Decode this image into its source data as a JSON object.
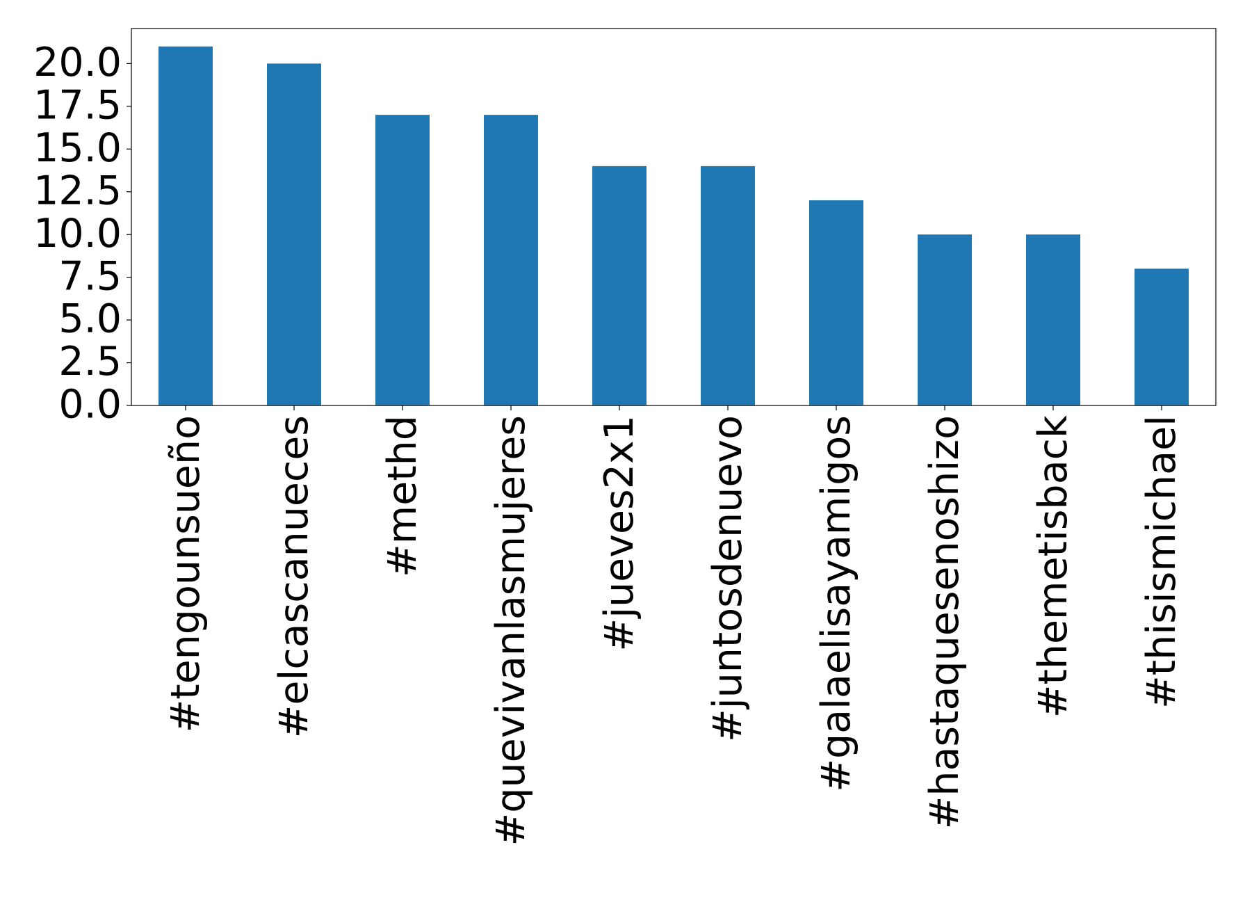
{
  "chart_data": {
    "type": "bar",
    "categories": [
      "#tengounsueño",
      "#elcascanueces",
      "#methd",
      "#quevivanlasmujeres",
      "#jueves2x1",
      "#juntosdenuevo",
      "#galaelisayamigos",
      "#hastaquesenoshizo",
      "#themetisback",
      "#thisismichael"
    ],
    "values": [
      21,
      20,
      17,
      17,
      14,
      14,
      12,
      10,
      10,
      8
    ],
    "color": "#1f77b4",
    "ylim": [
      0,
      22.05
    ],
    "yticks": [
      {
        "value": 0,
        "label": "0.0"
      },
      2.5,
      {
        "value": 5,
        "label": "5.0"
      },
      7.5,
      {
        "value": 10,
        "label": "10.0"
      },
      12.5,
      {
        "value": 15,
        "label": "15.0"
      },
      17.5,
      {
        "value": 20,
        "label": "20.0"
      }
    ],
    "grid": false
  }
}
